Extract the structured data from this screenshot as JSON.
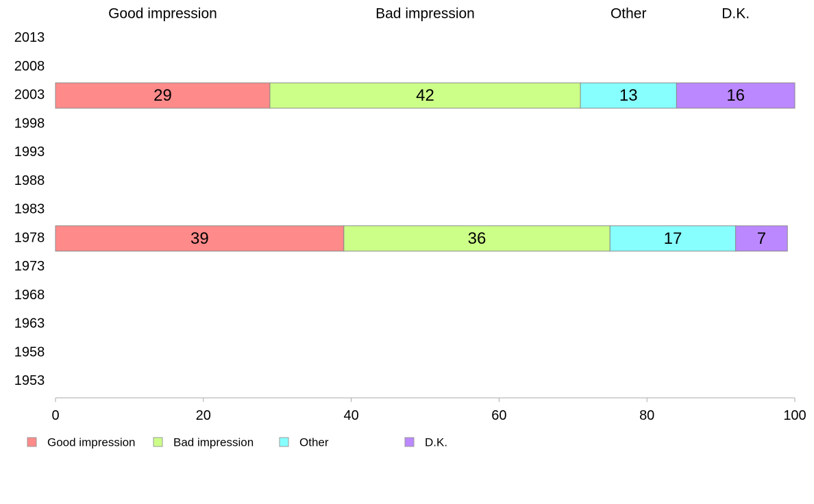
{
  "chart_data": {
    "type": "bar",
    "orientation": "horizontal",
    "stacked": true,
    "categories": [
      "2013",
      "2008",
      "2003",
      "1998",
      "1993",
      "1988",
      "1983",
      "1978",
      "1973",
      "1968",
      "1963",
      "1958",
      "1953"
    ],
    "series": [
      {
        "name": "Good impression",
        "color": "#ff8a8a",
        "values": [
          null,
          null,
          29,
          null,
          null,
          null,
          null,
          39,
          null,
          null,
          null,
          null,
          null
        ]
      },
      {
        "name": "Bad impression",
        "color": "#ccff88",
        "values": [
          null,
          null,
          42,
          null,
          null,
          null,
          null,
          36,
          null,
          null,
          null,
          null,
          null
        ]
      },
      {
        "name": "Other",
        "color": "#88ffff",
        "values": [
          null,
          null,
          13,
          null,
          null,
          null,
          null,
          17,
          null,
          null,
          null,
          null,
          null
        ]
      },
      {
        "name": "D.K.",
        "color": "#bb88ff",
        "values": [
          null,
          null,
          16,
          null,
          null,
          null,
          null,
          7,
          null,
          null,
          null,
          null,
          null
        ]
      }
    ],
    "column_headers": [
      "Good impression",
      "Bad impression",
      "Other",
      "D.K."
    ],
    "x_ticks": [
      "0",
      "20",
      "40",
      "60",
      "80",
      "100"
    ],
    "xlim": [
      0,
      100
    ],
    "title": "",
    "xlabel": "",
    "ylabel": "",
    "legend": {
      "position": "bottom-left",
      "items": [
        "Good impression",
        "Bad impression",
        "Other",
        "D.K."
      ]
    },
    "grid": false
  }
}
